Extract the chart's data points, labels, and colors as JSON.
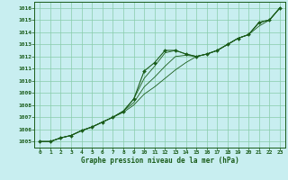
{
  "xlabel": "Graphe pression niveau de la mer (hPa)",
  "xlim": [
    -0.5,
    23.5
  ],
  "ylim": [
    1004.5,
    1016.5
  ],
  "yticks": [
    1005,
    1006,
    1007,
    1008,
    1009,
    1010,
    1011,
    1012,
    1013,
    1014,
    1015,
    1016
  ],
  "xticks": [
    0,
    1,
    2,
    3,
    4,
    5,
    6,
    7,
    8,
    9,
    10,
    11,
    12,
    13,
    14,
    15,
    16,
    17,
    18,
    19,
    20,
    21,
    22,
    23
  ],
  "bg_color": "#c8eef0",
  "grid_color": "#88ccaa",
  "line_color": "#1a5c1a",
  "series": [
    [
      1005.0,
      1005.0,
      1005.3,
      1005.5,
      1005.9,
      1006.2,
      1006.6,
      1007.0,
      1007.4,
      1008.0,
      1008.9,
      1009.5,
      1010.2,
      1010.9,
      1011.5,
      1012.0,
      1012.2,
      1012.5,
      1013.0,
      1013.5,
      1013.8,
      1014.5,
      1015.0,
      1016.0
    ],
    [
      1005.0,
      1005.0,
      1005.3,
      1005.5,
      1005.9,
      1006.2,
      1006.6,
      1007.0,
      1007.5,
      1008.2,
      1009.5,
      1010.3,
      1011.2,
      1012.0,
      1012.1,
      1012.0,
      1012.2,
      1012.5,
      1013.0,
      1013.5,
      1013.8,
      1014.8,
      1015.0,
      1016.0
    ],
    [
      1005.0,
      1005.0,
      1005.3,
      1005.5,
      1005.9,
      1006.2,
      1006.6,
      1007.0,
      1007.5,
      1008.5,
      1010.2,
      1011.2,
      1012.3,
      1012.5,
      1012.2,
      1012.0,
      1012.2,
      1012.5,
      1013.0,
      1013.5,
      1013.8,
      1014.8,
      1015.0,
      1016.0
    ],
    [
      1005.0,
      1005.0,
      1005.3,
      1005.5,
      1005.9,
      1006.2,
      1006.6,
      1007.0,
      1007.5,
      1008.5,
      1010.8,
      1011.5,
      1012.5,
      1012.5,
      1012.2,
      1012.0,
      1012.2,
      1012.5,
      1013.0,
      1013.5,
      1013.8,
      1014.8,
      1015.0,
      1016.0
    ]
  ],
  "main_series_idx": 3,
  "figsize": [
    3.2,
    2.0
  ],
  "dpi": 100
}
